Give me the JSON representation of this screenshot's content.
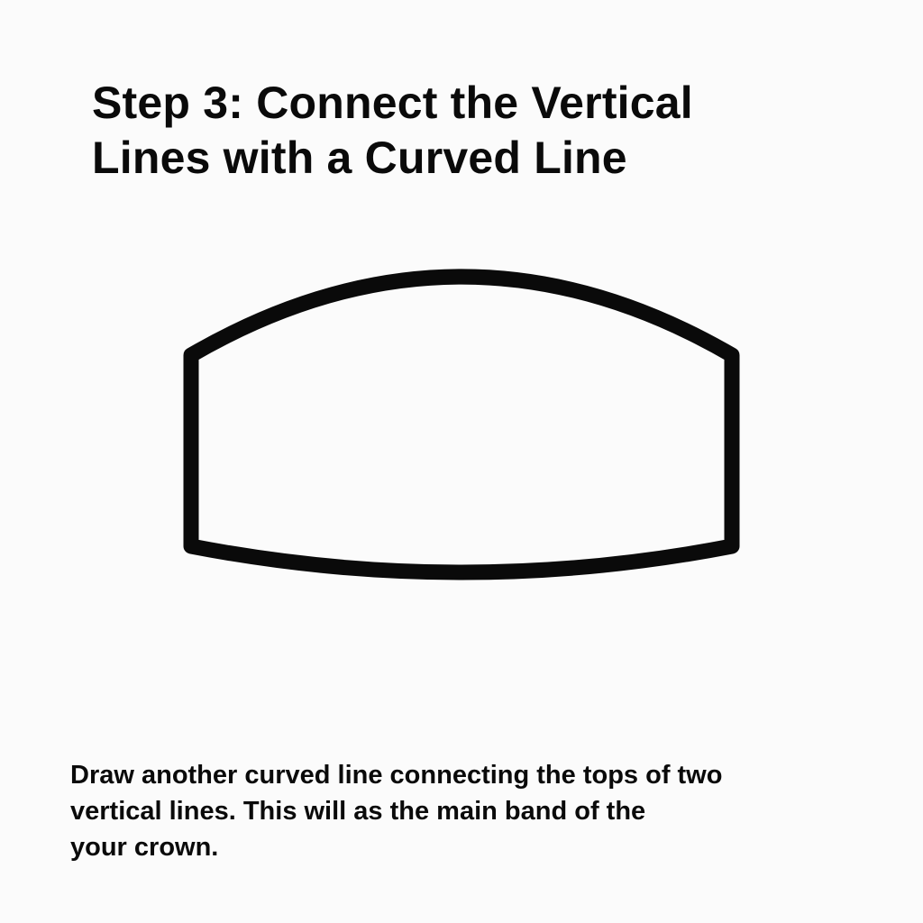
{
  "title": {
    "line1": "Step 3: Connect the Vertical",
    "line2": "Lines with a Curved Line"
  },
  "caption": {
    "line1": "Draw another curved line connecting the tops of two",
    "line2": "vertical lines. This will as the main band of the",
    "line3": "your crown."
  },
  "colors": {
    "background": "#fbfbfb",
    "stroke": "#0a0a0a",
    "text": "#0a0a0a"
  }
}
